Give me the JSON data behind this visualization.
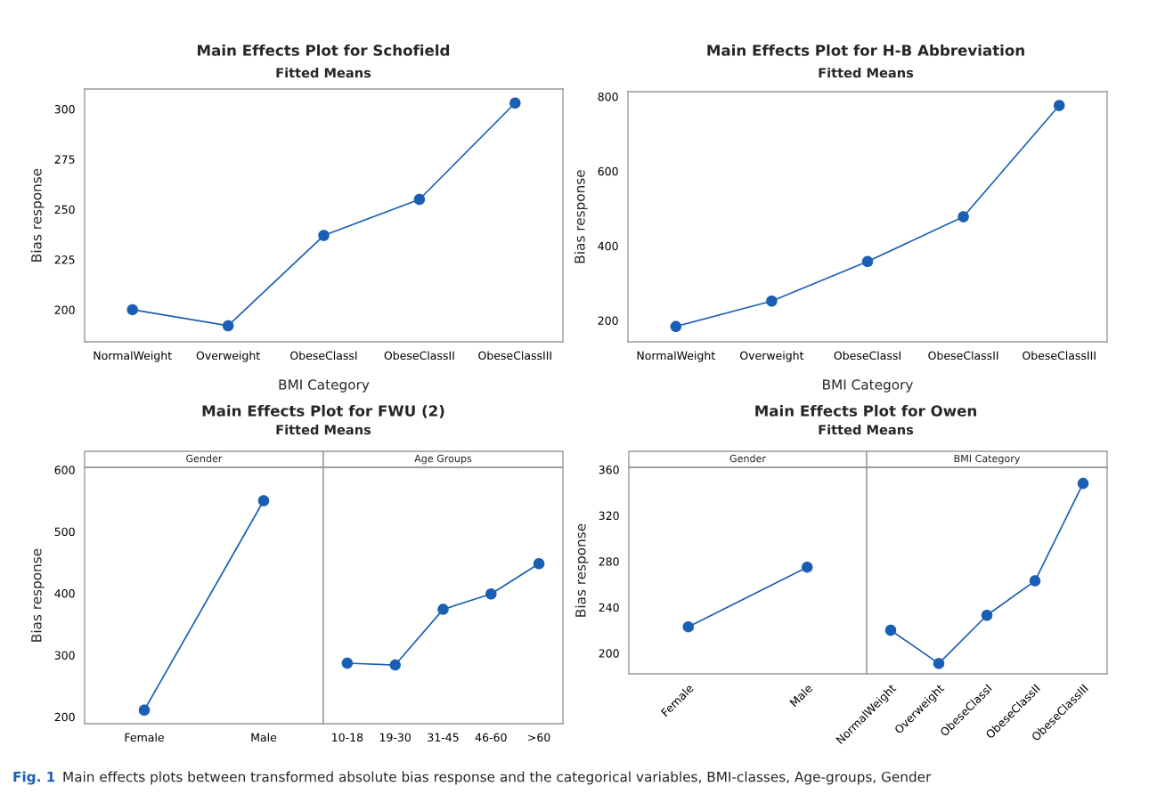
{
  "chart_data": [
    {
      "type": "line",
      "title": "Main Effects Plot for Schofield",
      "subtitle": "Fitted Means",
      "xlabel": "BMI Category",
      "ylabel": "Bias response",
      "categories": [
        "NormalWeight",
        "Overweight",
        "ObeseClassI",
        "ObeseClassII",
        "ObeseClassIII"
      ],
      "series": [
        {
          "color": "#1a5fb4",
          "values": [
            200,
            192,
            237,
            255,
            303
          ]
        }
      ],
      "ylim": [
        184,
        310
      ],
      "yticks": [
        200,
        225,
        250,
        275,
        300
      ],
      "marker": "circle",
      "grid": false,
      "annotations": [
        "Fig. 1",
        "Main effects plots between transformed absolute bias response and the categorical variables, BMI-classes, Age-groups, Gender"
      ]
    },
    {
      "type": "line",
      "title": "Main Effects Plot for H-B Abbreviation",
      "subtitle": "Fitted Means",
      "xlabel": "BMI Category",
      "ylabel": "Bias response",
      "categories": [
        "NormalWeight",
        "Overweight",
        "ObeseClassI",
        "ObeseClassII",
        "ObeseClassIII"
      ],
      "series": [
        {
          "color": "#1a5fb4",
          "values": [
            184,
            252,
            358,
            478,
            776
          ]
        }
      ],
      "ylim": [
        143,
        813
      ],
      "yticks": [
        200,
        400,
        600,
        800
      ],
      "marker": "circle",
      "grid": false
    },
    {
      "type": "line",
      "title": "Main Effects Plot for FWU (2)",
      "subtitle": "Fitted Means",
      "ylabel": "Bias response",
      "categories": [
        "Female",
        "Male"
      ],
      "series": [
        {
          "color": "#1a5fb4",
          "values": [
            211,
            550
          ]
        }
      ],
      "ylim": [
        189,
        604
      ],
      "yticks": [
        200,
        300,
        400,
        500,
        600
      ],
      "marker": "circle",
      "grid": false,
      "annotations": [
        "Gender"
      ]
    },
    {
      "type": "line",
      "categories": [
        "10-18",
        "19-30",
        "31-45",
        "46-60",
        ">60"
      ],
      "series": [
        {
          "color": "#1a5fb4",
          "values": [
            287,
            284,
            374,
            399,
            448
          ]
        }
      ],
      "ylim": [
        189,
        604
      ],
      "marker": "circle",
      "grid": false,
      "tick_labels": "x",
      "annotations": [
        "Age Groups"
      ]
    },
    {
      "type": "line",
      "title": "Main Effects Plot for Owen",
      "subtitle": "Fitted Means",
      "ylabel": "Bias response",
      "categories": [
        "Female",
        "Male"
      ],
      "series": [
        {
          "color": "#1a5fb4",
          "values": [
            223,
            275
          ]
        }
      ],
      "ylim": [
        182,
        362
      ],
      "yticks": [
        200,
        240,
        280,
        320,
        360
      ],
      "marker": "circle",
      "grid": false,
      "annotations": [
        "Gender"
      ]
    },
    {
      "type": "line",
      "categories": [
        "NormalWeight",
        "Overweight",
        "ObeseClassI",
        "ObeseClassII",
        "ObeseClassIII"
      ],
      "series": [
        {
          "color": "#1a5fb4",
          "values": [
            220,
            191,
            233,
            263,
            348
          ]
        }
      ],
      "ylim": [
        182,
        362
      ],
      "marker": "circle",
      "grid": false,
      "tick_labels": "x",
      "annotations": [
        "BMI Category"
      ]
    }
  ]
}
